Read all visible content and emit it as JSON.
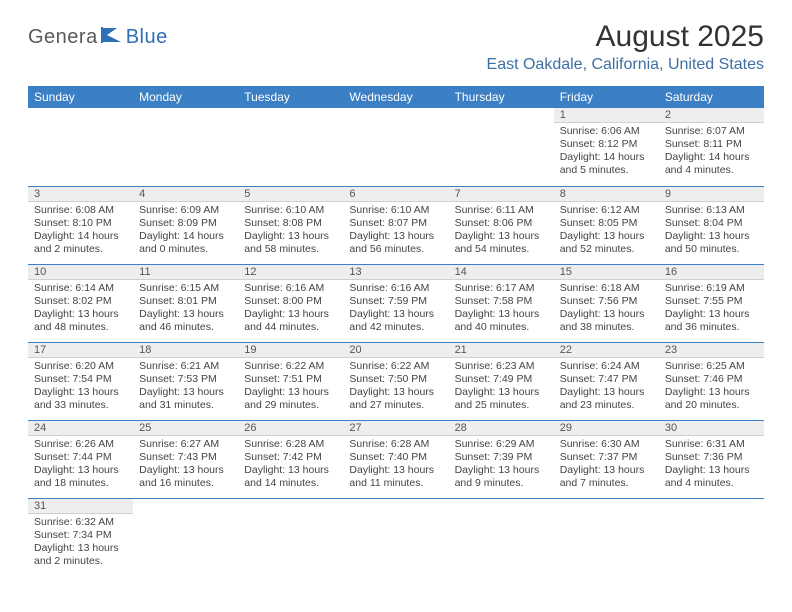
{
  "brand": {
    "part1": "Genera",
    "part2": "Blue"
  },
  "title": "August 2025",
  "location": "East Oakdale, California, United States",
  "colors": {
    "header_bg": "#3b7fc4",
    "header_text": "#ffffff",
    "daynum_bg": "#eeeeee",
    "rule": "#3b7fc4",
    "brand_gray": "#5a5a5a",
    "brand_blue": "#2e6fb5",
    "location_color": "#3d6fa4"
  },
  "weekdays": [
    "Sunday",
    "Monday",
    "Tuesday",
    "Wednesday",
    "Thursday",
    "Friday",
    "Saturday"
  ],
  "weeks": [
    [
      null,
      null,
      null,
      null,
      null,
      {
        "n": "1",
        "sr": "6:06 AM",
        "ss": "8:12 PM",
        "dl": "14 hours and 5 minutes."
      },
      {
        "n": "2",
        "sr": "6:07 AM",
        "ss": "8:11 PM",
        "dl": "14 hours and 4 minutes."
      }
    ],
    [
      {
        "n": "3",
        "sr": "6:08 AM",
        "ss": "8:10 PM",
        "dl": "14 hours and 2 minutes."
      },
      {
        "n": "4",
        "sr": "6:09 AM",
        "ss": "8:09 PM",
        "dl": "14 hours and 0 minutes."
      },
      {
        "n": "5",
        "sr": "6:10 AM",
        "ss": "8:08 PM",
        "dl": "13 hours and 58 minutes."
      },
      {
        "n": "6",
        "sr": "6:10 AM",
        "ss": "8:07 PM",
        "dl": "13 hours and 56 minutes."
      },
      {
        "n": "7",
        "sr": "6:11 AM",
        "ss": "8:06 PM",
        "dl": "13 hours and 54 minutes."
      },
      {
        "n": "8",
        "sr": "6:12 AM",
        "ss": "8:05 PM",
        "dl": "13 hours and 52 minutes."
      },
      {
        "n": "9",
        "sr": "6:13 AM",
        "ss": "8:04 PM",
        "dl": "13 hours and 50 minutes."
      }
    ],
    [
      {
        "n": "10",
        "sr": "6:14 AM",
        "ss": "8:02 PM",
        "dl": "13 hours and 48 minutes."
      },
      {
        "n": "11",
        "sr": "6:15 AM",
        "ss": "8:01 PM",
        "dl": "13 hours and 46 minutes."
      },
      {
        "n": "12",
        "sr": "6:16 AM",
        "ss": "8:00 PM",
        "dl": "13 hours and 44 minutes."
      },
      {
        "n": "13",
        "sr": "6:16 AM",
        "ss": "7:59 PM",
        "dl": "13 hours and 42 minutes."
      },
      {
        "n": "14",
        "sr": "6:17 AM",
        "ss": "7:58 PM",
        "dl": "13 hours and 40 minutes."
      },
      {
        "n": "15",
        "sr": "6:18 AM",
        "ss": "7:56 PM",
        "dl": "13 hours and 38 minutes."
      },
      {
        "n": "16",
        "sr": "6:19 AM",
        "ss": "7:55 PM",
        "dl": "13 hours and 36 minutes."
      }
    ],
    [
      {
        "n": "17",
        "sr": "6:20 AM",
        "ss": "7:54 PM",
        "dl": "13 hours and 33 minutes."
      },
      {
        "n": "18",
        "sr": "6:21 AM",
        "ss": "7:53 PM",
        "dl": "13 hours and 31 minutes."
      },
      {
        "n": "19",
        "sr": "6:22 AM",
        "ss": "7:51 PM",
        "dl": "13 hours and 29 minutes."
      },
      {
        "n": "20",
        "sr": "6:22 AM",
        "ss": "7:50 PM",
        "dl": "13 hours and 27 minutes."
      },
      {
        "n": "21",
        "sr": "6:23 AM",
        "ss": "7:49 PM",
        "dl": "13 hours and 25 minutes."
      },
      {
        "n": "22",
        "sr": "6:24 AM",
        "ss": "7:47 PM",
        "dl": "13 hours and 23 minutes."
      },
      {
        "n": "23",
        "sr": "6:25 AM",
        "ss": "7:46 PM",
        "dl": "13 hours and 20 minutes."
      }
    ],
    [
      {
        "n": "24",
        "sr": "6:26 AM",
        "ss": "7:44 PM",
        "dl": "13 hours and 18 minutes."
      },
      {
        "n": "25",
        "sr": "6:27 AM",
        "ss": "7:43 PM",
        "dl": "13 hours and 16 minutes."
      },
      {
        "n": "26",
        "sr": "6:28 AM",
        "ss": "7:42 PM",
        "dl": "13 hours and 14 minutes."
      },
      {
        "n": "27",
        "sr": "6:28 AM",
        "ss": "7:40 PM",
        "dl": "13 hours and 11 minutes."
      },
      {
        "n": "28",
        "sr": "6:29 AM",
        "ss": "7:39 PM",
        "dl": "13 hours and 9 minutes."
      },
      {
        "n": "29",
        "sr": "6:30 AM",
        "ss": "7:37 PM",
        "dl": "13 hours and 7 minutes."
      },
      {
        "n": "30",
        "sr": "6:31 AM",
        "ss": "7:36 PM",
        "dl": "13 hours and 4 minutes."
      }
    ],
    [
      {
        "n": "31",
        "sr": "6:32 AM",
        "ss": "7:34 PM",
        "dl": "13 hours and 2 minutes."
      },
      null,
      null,
      null,
      null,
      null,
      null
    ]
  ],
  "labels": {
    "sunrise": "Sunrise:",
    "sunset": "Sunset:",
    "daylight": "Daylight:"
  }
}
